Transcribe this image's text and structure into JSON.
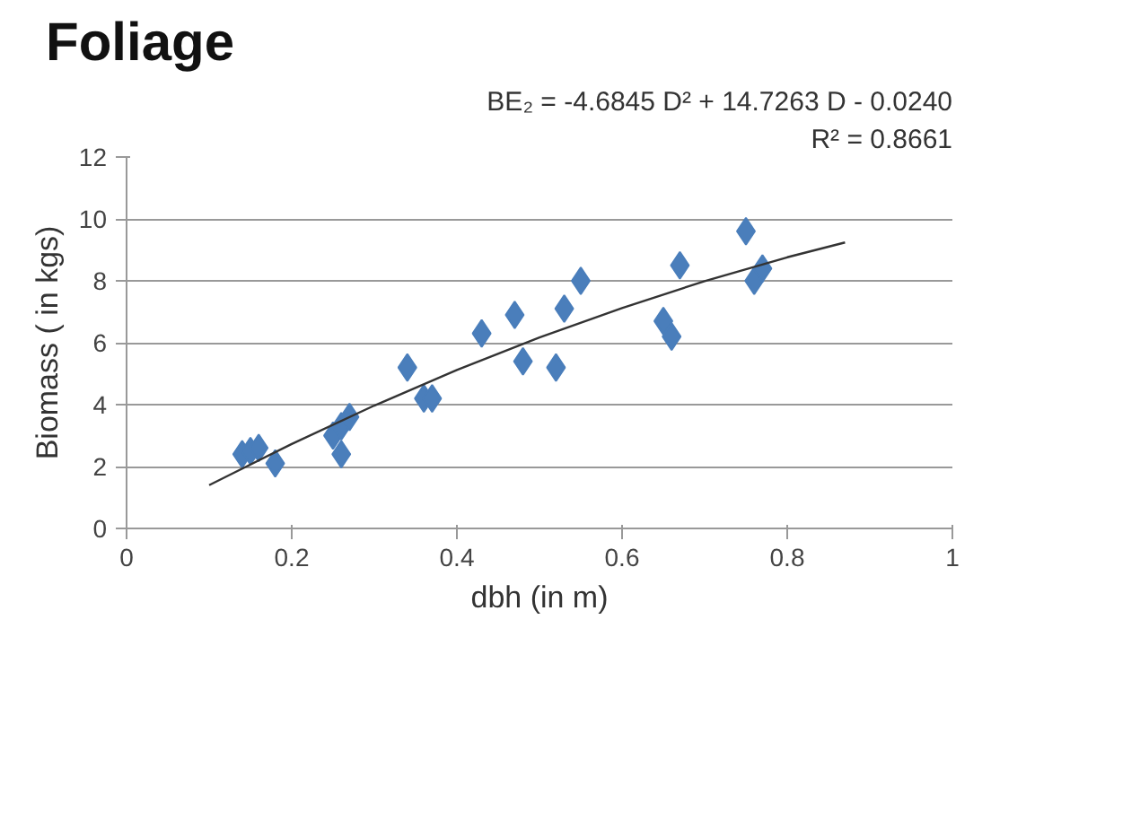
{
  "chart_data": {
    "type": "scatter",
    "title": "Foliage",
    "xlabel": "dbh (in m)",
    "ylabel": "Biomass ( in kgs)",
    "annotations": [
      "BE₂ = -4.6845 D² + 14.7263 D - 0.0240",
      "R² = 0.8661"
    ],
    "xlim": [
      0,
      1
    ],
    "ylim": [
      0,
      12
    ],
    "xticks": [
      0,
      0.2,
      0.4,
      0.6,
      0.8,
      1
    ],
    "yticks": [
      0,
      2,
      4,
      6,
      8,
      10,
      12
    ],
    "grid": "y",
    "marker": "diamond",
    "series": [
      {
        "color": "#4a7ebb",
        "x": [
          0.14,
          0.15,
          0.16,
          0.18,
          0.25,
          0.26,
          0.26,
          0.27,
          0.34,
          0.36,
          0.37,
          0.43,
          0.47,
          0.48,
          0.52,
          0.53,
          0.55,
          0.65,
          0.66,
          0.67,
          0.75,
          0.76,
          0.77
        ],
        "values": [
          2.4,
          2.5,
          2.6,
          2.1,
          3.0,
          3.3,
          2.4,
          3.6,
          5.2,
          4.2,
          4.2,
          6.3,
          6.9,
          5.4,
          5.2,
          7.1,
          8.0,
          6.7,
          6.2,
          8.5,
          9.6,
          8.0,
          8.4
        ]
      },
      {
        "type": "line",
        "color": "#333333",
        "marker": "none",
        "x": [
          0.1,
          0.2,
          0.3,
          0.4,
          0.5,
          0.6,
          0.7,
          0.8,
          0.87
        ],
        "values": [
          1.4,
          2.73,
          3.97,
          5.12,
          6.17,
          7.12,
          7.99,
          8.76,
          9.24
        ]
      }
    ]
  }
}
